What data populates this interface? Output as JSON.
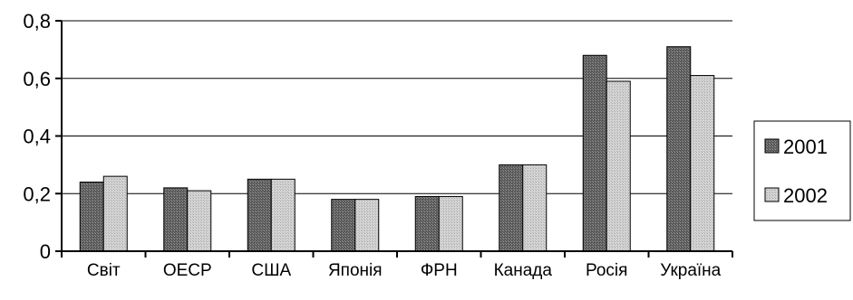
{
  "chart_data": {
    "type": "bar",
    "categories": [
      "Світ",
      "ОЕСР",
      "США",
      "Японія",
      "ФРН",
      "Канада",
      "Росія",
      "Україна"
    ],
    "series": [
      {
        "name": "2001",
        "values": [
          0.24,
          0.22,
          0.25,
          0.18,
          0.19,
          0.3,
          0.68,
          0.71
        ],
        "color": "#6e6e6e"
      },
      {
        "name": "2002",
        "values": [
          0.26,
          0.21,
          0.25,
          0.18,
          0.19,
          0.3,
          0.59,
          0.61
        ],
        "color": "#c8c8c8"
      }
    ],
    "yticks": [
      "0",
      "0,2",
      "0,4",
      "0,6",
      "0,8"
    ],
    "ylim": [
      0,
      0.8
    ],
    "grid": true,
    "legend_position": "right",
    "title": "",
    "xlabel": "",
    "ylabel": ""
  }
}
